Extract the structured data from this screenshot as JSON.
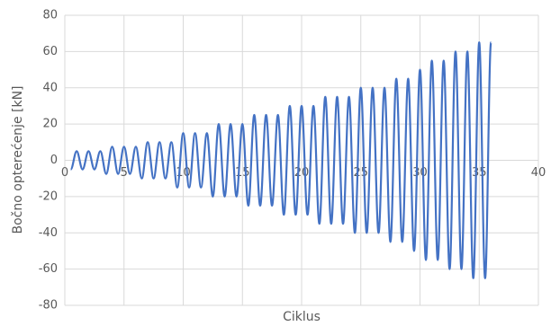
{
  "chart_data": {
    "type": "line",
    "x_label": "Ciklus",
    "y_label": "Bočno opterećenje [kN]",
    "xlim": [
      0,
      40
    ],
    "xticks": [
      0,
      5,
      10,
      15,
      20,
      25,
      30,
      35,
      40
    ],
    "ylim": [
      -80,
      80
    ],
    "yticks": [
      -80,
      -60,
      -40,
      -20,
      0,
      20,
      40,
      60,
      80
    ],
    "grid": true,
    "series": [
      {
        "color": "#4472c4",
        "x": [
          0.5,
          1,
          1.5,
          2,
          2.5,
          3,
          3.5,
          4,
          4.5,
          5,
          5.5,
          6,
          6.5,
          7,
          7.5,
          8,
          8.5,
          9,
          9.5,
          10,
          10.5,
          11,
          11.5,
          12,
          12.5,
          13,
          13.5,
          14,
          14.5,
          15,
          15.5,
          16,
          16.5,
          17,
          17.5,
          18,
          18.5,
          19,
          19.5,
          20,
          20.5,
          21,
          21.5,
          22,
          22.5,
          23,
          23.5,
          24,
          24.5,
          25,
          25.5,
          26,
          26.5,
          27,
          27.5,
          28,
          28.5,
          29,
          29.5,
          30,
          30.5,
          31,
          31.5,
          32,
          32.5,
          33,
          33.5,
          34,
          34.5,
          35,
          35.5,
          36
        ],
        "values": [
          -5,
          5,
          -5,
          5,
          -5,
          5,
          -7.5,
          7.5,
          -7.5,
          7.5,
          -7.5,
          7.5,
          -10,
          10,
          -10,
          10,
          -10,
          10,
          -15,
          15,
          -15,
          15,
          -15,
          15,
          -20,
          20,
          -20,
          20,
          -20,
          20,
          -25,
          25,
          -25,
          25,
          -25,
          25,
          -30,
          30,
          -30,
          30,
          -30,
          30,
          -35,
          35,
          -35,
          35,
          -35,
          35,
          -40,
          40,
          -40,
          40,
          -40,
          40,
          -45,
          45,
          -45,
          45,
          -50,
          50,
          -55,
          55,
          -55,
          55,
          -60,
          60,
          -60,
          60,
          -65,
          65,
          -65,
          65
        ]
      }
    ]
  }
}
